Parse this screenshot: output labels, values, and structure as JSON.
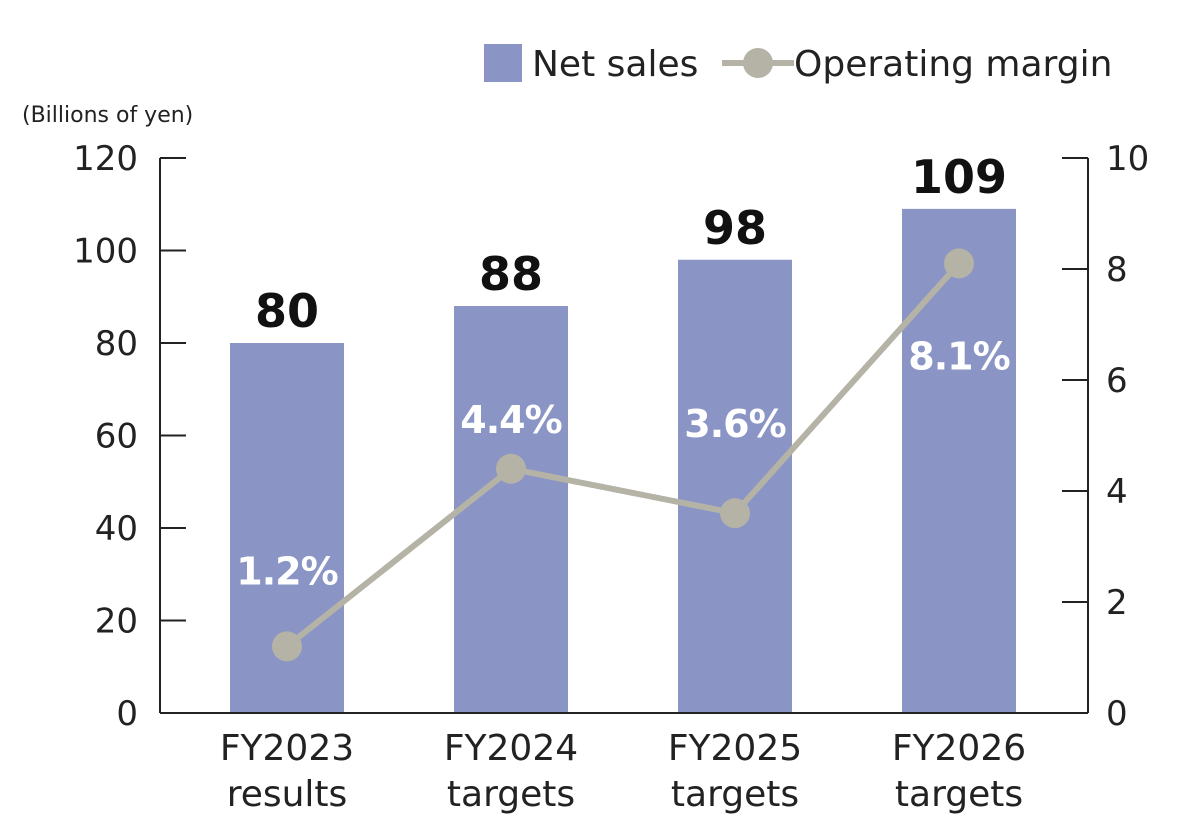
{
  "chart_data": {
    "type": "bar",
    "categories": [
      [
        "FY2023",
        "results"
      ],
      [
        "FY2024",
        "targets"
      ],
      [
        "FY2025",
        "targets"
      ],
      [
        "FY2026",
        "targets"
      ]
    ],
    "series": [
      {
        "name": "Net sales",
        "type": "bar",
        "axis": "left",
        "values": [
          80,
          88,
          98,
          109
        ],
        "labels": [
          "80",
          "88",
          "98",
          "109"
        ]
      },
      {
        "name": "Operating margin",
        "type": "line",
        "axis": "right",
        "values": [
          1.2,
          4.4,
          3.6,
          8.1
        ],
        "labels": [
          "1.2%",
          "4.4%",
          "3.6%",
          "8.1%"
        ]
      }
    ],
    "y_left": {
      "unit_label": "(Billions of yen)",
      "min": 0,
      "max": 120,
      "ticks": [
        "0",
        "20",
        "40",
        "60",
        "80",
        "100",
        "120"
      ]
    },
    "y_right": {
      "min": 0,
      "max": 10,
      "ticks": [
        "0",
        "2",
        "4",
        "6",
        "8",
        "10"
      ]
    },
    "legend": {
      "position": "top-right",
      "entries": [
        "Net sales",
        "Operating margin"
      ]
    },
    "grid": false,
    "colors": {
      "bar": "#8a95c6",
      "line": "#b5b3a6",
      "axis": "#222222"
    }
  }
}
